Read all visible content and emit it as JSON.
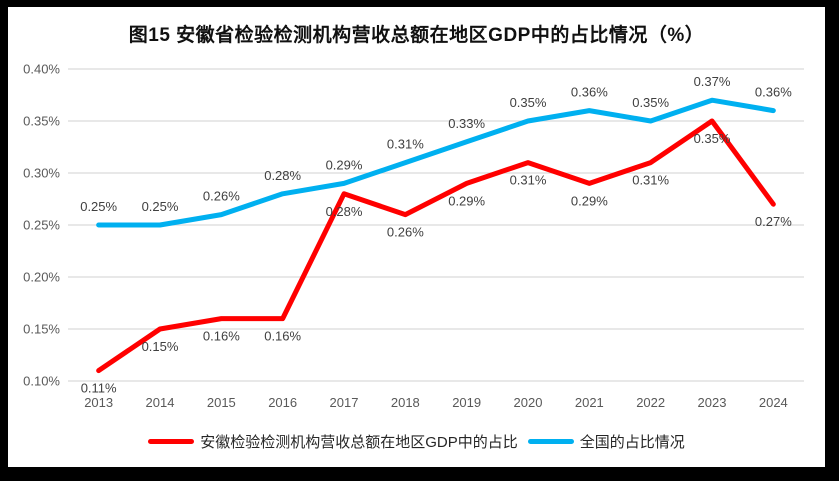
{
  "title": "图15 安徽省检验检测机构营收总额在地区GDP中的占比情况（%）",
  "colors": {
    "anhui_line": "#FF0000",
    "national_line": "#00B0F0",
    "gridline": "#D9D9D9",
    "tick_text": "#595959",
    "data_label_text": "#404040",
    "title_text": "#111111",
    "frame_border": "#000000",
    "background": "#FFFFFF"
  },
  "chart_data": {
    "type": "line",
    "title": "图15 安徽省检验检测机构营收总额在地区GDP中的占比情况（%）",
    "categories": [
      "2013",
      "2014",
      "2015",
      "2016",
      "2017",
      "2018",
      "2019",
      "2020",
      "2021",
      "2022",
      "2023",
      "2024"
    ],
    "series": [
      {
        "key": "anhui",
        "name": "安徽检验检测机构营收总额在地区GDP中的占比",
        "color": "#FF0000",
        "values": [
          0.11,
          0.15,
          0.16,
          0.16,
          0.28,
          0.26,
          0.29,
          0.31,
          0.29,
          0.31,
          0.35,
          0.27
        ],
        "labels": [
          "0.11%",
          "0.15%",
          "0.16%",
          "0.16%",
          "0.28%",
          "0.26%",
          "0.29%",
          "0.31%",
          "0.29%",
          "0.31%",
          "0.35%",
          "0.27%"
        ],
        "label_position": "below"
      },
      {
        "key": "national",
        "name": "全国的占比情况",
        "color": "#00B0F0",
        "values": [
          0.25,
          0.25,
          0.26,
          0.28,
          0.29,
          0.31,
          0.33,
          0.35,
          0.36,
          0.35,
          0.37,
          0.36
        ],
        "labels": [
          "0.25%",
          "0.25%",
          "0.26%",
          "0.28%",
          "0.29%",
          "0.31%",
          "0.33%",
          "0.35%",
          "0.36%",
          "0.35%",
          "0.37%",
          "0.36%"
        ],
        "label_position": "above"
      }
    ],
    "xlabel": "",
    "ylabel": "",
    "ylim": [
      0.1,
      0.4
    ],
    "yticks": [
      {
        "value": 0.4,
        "label": "0.40%"
      },
      {
        "value": 0.35,
        "label": "0.35%"
      },
      {
        "value": 0.3,
        "label": "0.30%"
      },
      {
        "value": 0.25,
        "label": "0.25%"
      },
      {
        "value": 0.2,
        "label": "0.20%"
      },
      {
        "value": 0.15,
        "label": "0.15%"
      },
      {
        "value": 0.1,
        "label": "0.10%"
      }
    ],
    "grid": true,
    "legend_position": "bottom"
  }
}
